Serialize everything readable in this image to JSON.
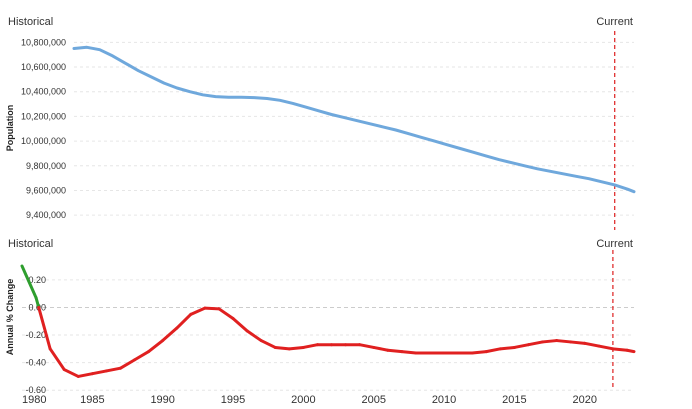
{
  "chart_data": [
    {
      "type": "line",
      "ylabel": "Population",
      "left_note": "Historical",
      "right_note": "Current",
      "current_year": 2022,
      "xlim": [
        1980,
        2023.5
      ],
      "ylim": [
        9320000,
        10900000
      ],
      "yticks": [
        9400000,
        9600000,
        9800000,
        10000000,
        10200000,
        10400000,
        10600000,
        10800000
      ],
      "ytick_labels": [
        "9,400,000",
        "9,600,000",
        "9,800,000",
        "10,000,000",
        "10,200,000",
        "10,400,000",
        "10,600,000",
        "10,800,000"
      ],
      "xticks": [
        1980,
        1985,
        1990,
        1995,
        2000,
        2005,
        2010,
        2015,
        2020
      ],
      "series": [
        {
          "color": "#6fa8dc",
          "x": [
            1980,
            1981,
            1982,
            1983,
            1984,
            1985,
            1986,
            1987,
            1988,
            1989,
            1990,
            1991,
            1992,
            1993,
            1994,
            1995,
            1996,
            1997,
            1998,
            1999,
            2000,
            2001,
            2002,
            2003,
            2004,
            2005,
            2006,
            2007,
            2008,
            2009,
            2010,
            2011,
            2012,
            2013,
            2014,
            2015,
            2016,
            2017,
            2018,
            2019,
            2020,
            2021,
            2022,
            2023,
            2023.5
          ],
          "y": [
            10750000,
            10760000,
            10740000,
            10690000,
            10630000,
            10570000,
            10520000,
            10470000,
            10430000,
            10400000,
            10375000,
            10360000,
            10355000,
            10355000,
            10352000,
            10345000,
            10330000,
            10305000,
            10275000,
            10245000,
            10215000,
            10190000,
            10165000,
            10140000,
            10115000,
            10090000,
            10060000,
            10030000,
            10000000,
            9970000,
            9940000,
            9910000,
            9880000,
            9850000,
            9825000,
            9800000,
            9775000,
            9755000,
            9735000,
            9715000,
            9695000,
            9670000,
            9645000,
            9610000,
            9590000
          ]
        }
      ]
    },
    {
      "type": "line",
      "ylabel": "Annual % Change",
      "left_note": "Historical",
      "right_note": "Current",
      "current_year": 2022,
      "xlim": [
        1980,
        2023.5
      ],
      "ylim": [
        -0.62,
        0.38
      ],
      "yticks": [
        -0.6,
        -0.4,
        -0.2,
        0.0,
        0.2
      ],
      "ytick_labels": [
        "-0.60",
        "-0.40",
        "-0.20",
        "0.00",
        "0.20"
      ],
      "xticks": [
        1980,
        1985,
        1990,
        1995,
        2000,
        2005,
        2010,
        2015,
        2020
      ],
      "xtick_labels": [
        "1980",
        "1985",
        "1990",
        "1995",
        "2000",
        "2005",
        "2010",
        "2015",
        "2020"
      ],
      "positive_color": "#2e9e2e",
      "negative_color": "#e02020",
      "series": [
        {
          "x": [
            1980,
            1981,
            1982,
            1983,
            1984,
            1985,
            1986,
            1987,
            1988,
            1989,
            1990,
            1991,
            1992,
            1993,
            1994,
            1995,
            1996,
            1997,
            1998,
            1999,
            2000,
            2001,
            2002,
            2003,
            2004,
            2005,
            2006,
            2007,
            2008,
            2009,
            2010,
            2011,
            2012,
            2013,
            2014,
            2015,
            2016,
            2017,
            2018,
            2019,
            2020,
            2021,
            2022,
            2023,
            2023.5
          ],
          "y": [
            0.3,
            0.07,
            -0.3,
            -0.45,
            -0.5,
            -0.48,
            -0.46,
            -0.44,
            -0.38,
            -0.32,
            -0.24,
            -0.15,
            -0.05,
            -0.005,
            -0.01,
            -0.08,
            -0.17,
            -0.24,
            -0.29,
            -0.3,
            -0.29,
            -0.27,
            -0.27,
            -0.27,
            -0.27,
            -0.29,
            -0.31,
            -0.32,
            -0.33,
            -0.33,
            -0.33,
            -0.33,
            -0.33,
            -0.32,
            -0.3,
            -0.29,
            -0.27,
            -0.25,
            -0.24,
            -0.25,
            -0.26,
            -0.28,
            -0.3,
            -0.31,
            -0.32
          ]
        }
      ]
    }
  ]
}
